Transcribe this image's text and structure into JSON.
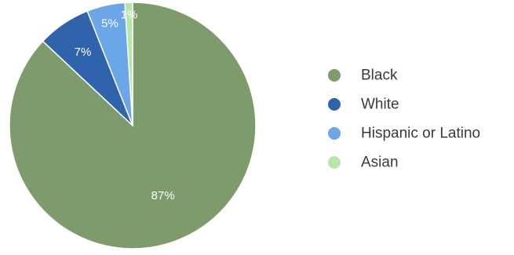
{
  "chart_data": {
    "type": "pie",
    "categories": [
      "Black",
      "White",
      "Hispanic or Latino",
      "Asian"
    ],
    "values": [
      87,
      7,
      5,
      1
    ],
    "labels": [
      "87%",
      "7%",
      "5%",
      "1%"
    ],
    "colors": [
      "#7d9b6b",
      "#2f64ad",
      "#6aa6e8",
      "#b8e6a8"
    ],
    "start_angle_deg": 0,
    "direction": "clockwise",
    "legend_position": "right"
  }
}
